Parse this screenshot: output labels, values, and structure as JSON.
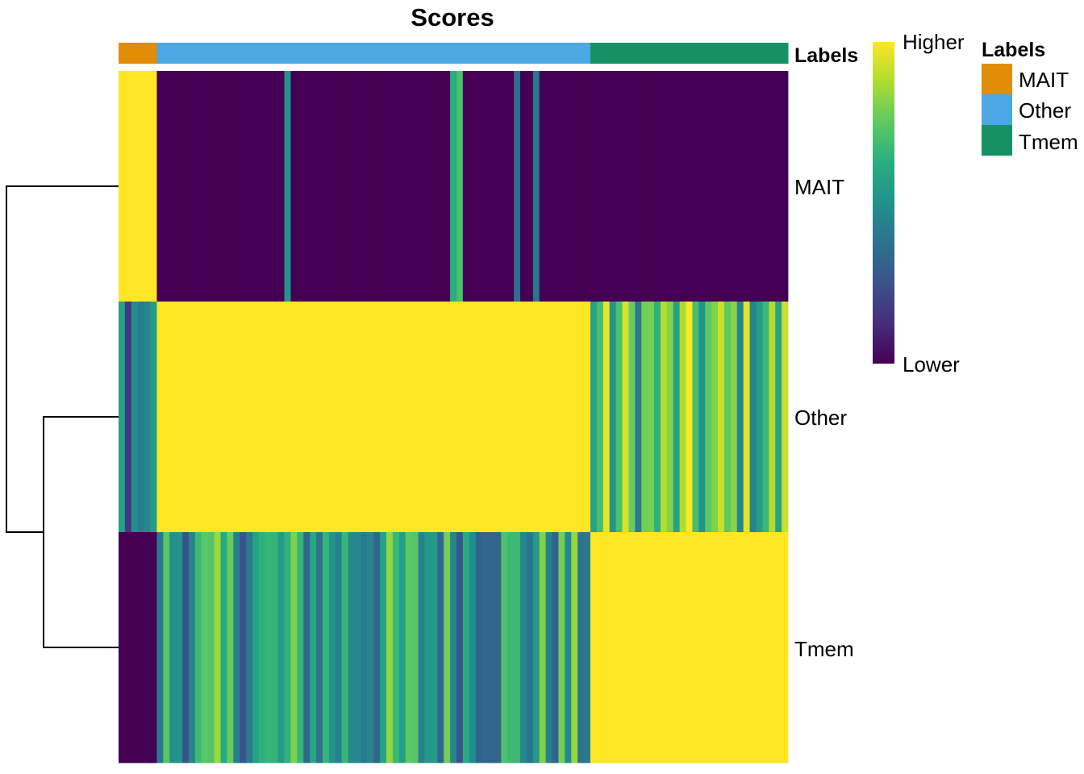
{
  "chart_data": {
    "type": "heatmap",
    "title": "Scores",
    "annotation_track": {
      "name": "Labels",
      "groups": [
        {
          "label": "MAIT",
          "cells": 6,
          "color": "#E18D08"
        },
        {
          "label": "Other",
          "cells": 68,
          "color": "#4BA8E3"
        },
        {
          "label": "Tmem",
          "cells": 31,
          "color": "#159264"
        }
      ]
    },
    "rows": [
      "MAIT",
      "Other",
      "Tmem"
    ],
    "row_order": [
      "MAIT",
      "Other",
      "Tmem"
    ],
    "dendrogram": {
      "merges": [
        {
          "members": [
            "Other",
            "Tmem"
          ]
        },
        {
          "members": [
            "MAIT",
            [
              "Other",
              "Tmem"
            ]
          ]
        }
      ]
    },
    "block_scores": {
      "description_rows": "rows = score row; cols = cell label group",
      "MAIT": {
        "MAIT": 1.0,
        "Other": 0.05,
        "Tmem": 0.0
      },
      "Other": {
        "MAIT": 0.45,
        "Other": 1.0,
        "Tmem": 0.7
      },
      "Tmem": {
        "MAIT": 0.0,
        "Other": 0.55,
        "Tmem": 1.0
      }
    },
    "colorbar": {
      "high_label": "Higher",
      "low_label": "Lower",
      "palette": [
        "#440154",
        "#472D7B",
        "#3B528B",
        "#2C728E",
        "#21918C",
        "#28AE80",
        "#5EC962",
        "#ADDC30",
        "#FDE725"
      ]
    },
    "legend": {
      "title": "Labels",
      "position": "right",
      "items": [
        {
          "label": "MAIT",
          "color": "#E18D08"
        },
        {
          "label": "Other",
          "color": "#4BA8E3"
        },
        {
          "label": "Tmem",
          "color": "#159264"
        }
      ]
    }
  }
}
